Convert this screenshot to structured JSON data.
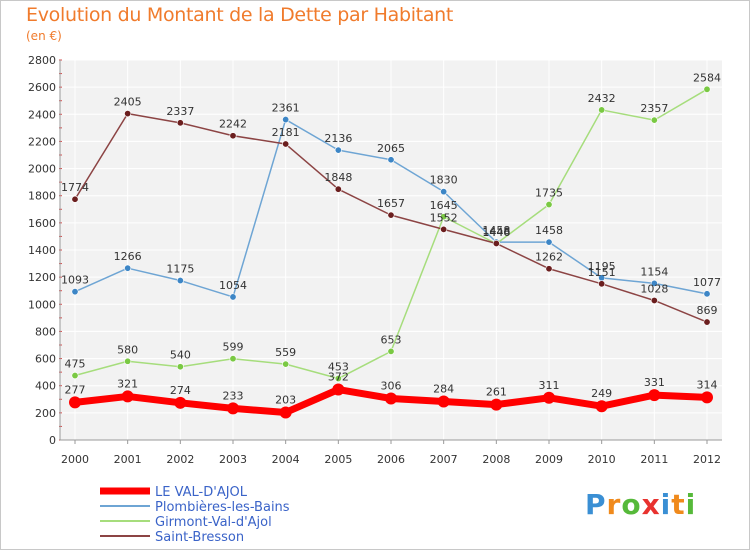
{
  "header": {
    "title": "Evolution du Montant de la Dette par Habitant",
    "subtitle": "(en €)"
  },
  "logo": {
    "text": "Proxiti",
    "letter_colors": [
      "#3a8fd4",
      "#f08a1c",
      "#56b93a",
      "#e8322f",
      "#3a8fd4",
      "#f08a1c",
      "#56b93a"
    ]
  },
  "chart_data": {
    "type": "line",
    "x": [
      "2000",
      "2001",
      "2002",
      "2003",
      "2004",
      "2005",
      "2006",
      "2007",
      "2008",
      "2009",
      "2010",
      "2011",
      "2012"
    ],
    "ylim": [
      0,
      2800
    ],
    "yticks": [
      0,
      200,
      400,
      600,
      800,
      1000,
      1200,
      1400,
      1600,
      1800,
      2000,
      2200,
      2400,
      2600,
      2800
    ],
    "grid": true,
    "legend_position": "bottom-left",
    "series": [
      {
        "name": "LE VAL-D'AJOL",
        "color": "#ff0000",
        "marker": "#ff0000",
        "emphasis": true,
        "values": [
          277,
          321,
          274,
          233,
          203,
          372,
          306,
          284,
          261,
          311,
          249,
          331,
          314
        ]
      },
      {
        "name": "Plombières-les-Bains",
        "color": "#6ea5d4",
        "marker": "#3d86c6",
        "emphasis": false,
        "values": [
          1093,
          1266,
          1175,
          1054,
          2361,
          2136,
          2065,
          1830,
          1458,
          1458,
          1195,
          1154,
          1077
        ]
      },
      {
        "name": "Girmont-Val-d'Ajol",
        "color": "#a6dd7c",
        "marker": "#7ac943",
        "emphasis": false,
        "values": [
          475,
          580,
          540,
          599,
          559,
          453,
          653,
          1645,
          1446,
          1735,
          2432,
          2357,
          2584
        ]
      },
      {
        "name": "Saint-Bresson",
        "color": "#8c4444",
        "marker": "#6b1e1e",
        "emphasis": false,
        "values": [
          1774,
          2405,
          2337,
          2242,
          2181,
          1848,
          1657,
          1552,
          1448,
          1262,
          1151,
          1028,
          869
        ]
      }
    ]
  }
}
